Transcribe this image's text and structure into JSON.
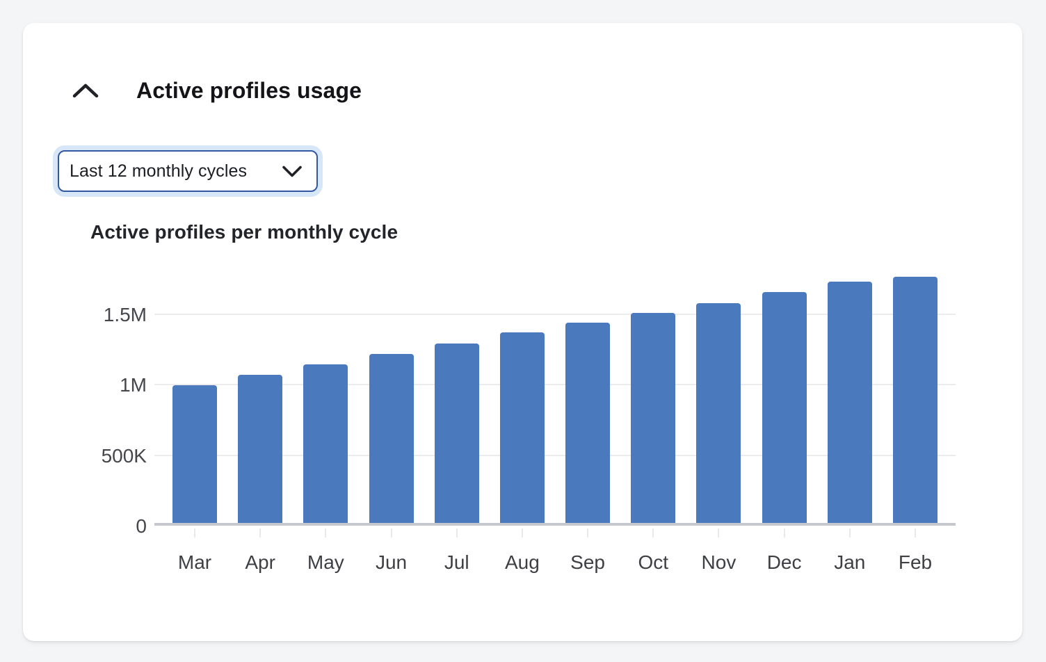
{
  "card": {
    "title": "Active profiles usage",
    "collapse_icon": "chevron-up-icon",
    "dropdown": {
      "value": "Last 12 monthly cycles",
      "icon": "chevron-down-icon"
    }
  },
  "chart_data": {
    "type": "bar",
    "title": "Active profiles per monthly cycle",
    "categories": [
      "Mar",
      "Apr",
      "May",
      "Jun",
      "Jul",
      "Aug",
      "Sep",
      "Oct",
      "Nov",
      "Dec",
      "Jan",
      "Feb"
    ],
    "values": [
      975000,
      1050000,
      1125000,
      1200000,
      1270000,
      1350000,
      1420000,
      1490000,
      1560000,
      1635000,
      1710000,
      1745000
    ],
    "y_ticks": [
      {
        "value": 0,
        "label": "0"
      },
      {
        "value": 500000,
        "label": "500K"
      },
      {
        "value": 1000000,
        "label": "1M"
      },
      {
        "value": 1500000,
        "label": "1.5M"
      }
    ],
    "ylim": [
      0,
      1780000
    ],
    "xlabel": "",
    "ylabel": "",
    "grid": true,
    "legend": false,
    "bar_color": "#4A79BD"
  },
  "colors": {
    "page_bg": "#F4F5F7",
    "card_bg": "#FFFFFF",
    "title_text": "#131318",
    "chart_title_text": "#232429",
    "dropdown_border": "#3157A2",
    "dropdown_text": "#1B1D23",
    "focus_ring": "#D8E7F8",
    "bar": "#4A79BD",
    "gridline": "#EBEBEE",
    "baseline": "#C6C8CD",
    "tick": "#E8E9EB",
    "axis_text": "#45464C",
    "x_axis_text": "#3E3F44",
    "icon": "#1F2127"
  }
}
